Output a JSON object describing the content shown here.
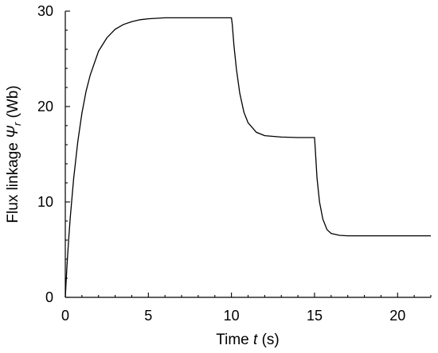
{
  "chart_data": {
    "type": "line",
    "xlabel": {
      "prefix": "Time ",
      "var": "t",
      "suffix": " (s)"
    },
    "ylabel": {
      "prefix": "Flux linkage ",
      "var": "Ψ",
      "sub": "r",
      "suffix": " (Wb)"
    },
    "xlim": [
      0,
      22
    ],
    "ylim": [
      0,
      30
    ],
    "x_ticks": [
      0,
      5,
      10,
      15,
      20
    ],
    "x_tick_labels": [
      "0",
      "5",
      "10",
      "15",
      "20"
    ],
    "x_minor_step": 1,
    "y_ticks": [
      0,
      10,
      20,
      30
    ],
    "y_tick_labels": [
      "0",
      "10",
      "20",
      "30"
    ],
    "y_minor_step": 2,
    "grid": false,
    "series": [
      {
        "x": [
          0,
          0.1,
          0.2,
          0.3,
          0.5,
          0.75,
          1.0,
          1.25,
          1.5,
          2.0,
          2.5,
          3.0,
          3.5,
          4.0,
          4.5,
          5.0,
          6.0,
          7.0,
          8.0,
          9.0,
          10.0,
          10.05,
          10.15,
          10.3,
          10.5,
          10.75,
          11.0,
          11.5,
          12.0,
          13.0,
          14.0,
          15.0,
          15.05,
          15.15,
          15.3,
          15.5,
          15.75,
          16.0,
          16.5,
          17.0,
          18.0,
          20.0,
          22.0
        ],
        "y": [
          0,
          3.3,
          6.0,
          8.4,
          12.4,
          16.3,
          19.3,
          21.6,
          23.3,
          25.8,
          27.2,
          28.1,
          28.6,
          28.9,
          29.1,
          29.2,
          29.3,
          29.3,
          29.3,
          29.3,
          29.3,
          28.6,
          26.4,
          23.9,
          21.4,
          19.4,
          18.3,
          17.3,
          16.95,
          16.8,
          16.75,
          16.75,
          15.4,
          12.5,
          10.0,
          8.2,
          7.1,
          6.7,
          6.5,
          6.45,
          6.45,
          6.45,
          6.45
        ]
      }
    ]
  }
}
